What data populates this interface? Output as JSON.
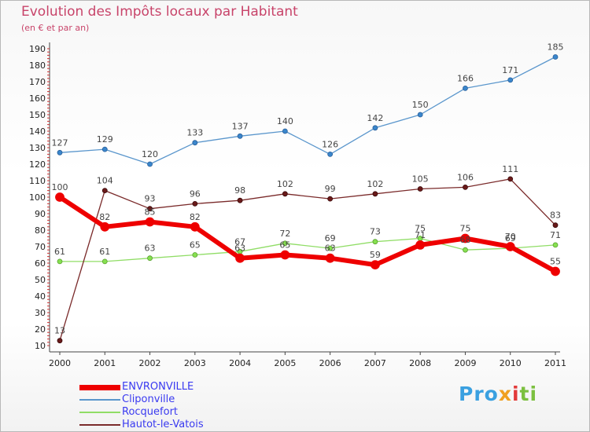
{
  "header": {
    "title": "Evolution des Impôts locaux par Habitant",
    "subtitle": "(en € et par an)"
  },
  "logo": {
    "text": "Proxiti",
    "parts": [
      "Pro",
      "x",
      "i",
      "ti"
    ]
  },
  "colors": {
    "ENVRONVILLE": "#ee0000",
    "Cliponville": "#5a96cc",
    "Rocquefort": "#90dd66",
    "Hautot-le-Vatois": "#7a2a2a",
    "text": "#c8446a",
    "legend_text": "#3a3af0"
  },
  "chart_data": {
    "type": "line",
    "title": "Evolution des Impôts locaux par Habitant",
    "subtitle": "(en € et par an)",
    "xlabel": "",
    "ylabel": "",
    "x": [
      2000,
      2001,
      2002,
      2003,
      2004,
      2005,
      2006,
      2007,
      2008,
      2009,
      2010,
      2011
    ],
    "ylim": [
      10,
      190
    ],
    "yticks": [
      10,
      20,
      30,
      40,
      50,
      60,
      70,
      80,
      90,
      100,
      110,
      120,
      130,
      140,
      150,
      160,
      170,
      180,
      190
    ],
    "grid": false,
    "legend_position": "bottom-left",
    "series": [
      {
        "name": "Cliponville",
        "values": [
          127,
          129,
          120,
          133,
          137,
          140,
          126,
          142,
          150,
          166,
          171,
          185
        ]
      },
      {
        "name": "Rocquefort",
        "values": [
          61,
          61,
          63,
          65,
          67,
          72,
          69,
          73,
          75,
          68,
          69,
          71
        ]
      },
      {
        "name": "Hautot-le-Vatois",
        "values": [
          13,
          104,
          93,
          96,
          98,
          102,
          99,
          102,
          105,
          106,
          111,
          83
        ]
      },
      {
        "name": "ENVRONVILLE",
        "values": [
          100,
          82,
          85,
          82,
          63,
          65,
          63,
          59,
          71,
          75,
          70,
          55
        ]
      }
    ]
  }
}
